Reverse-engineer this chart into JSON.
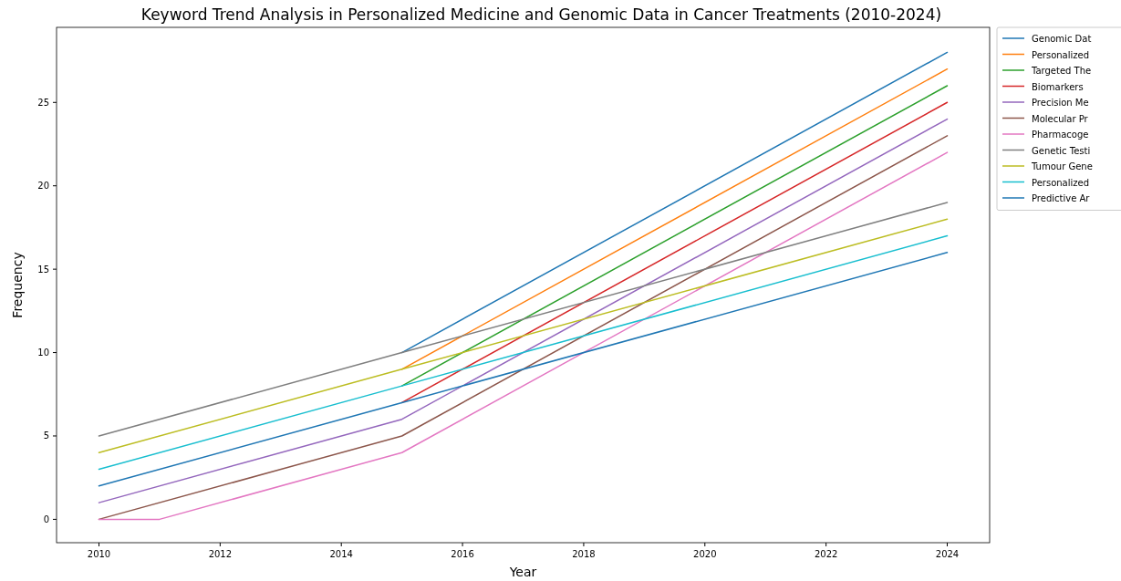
{
  "chart_data": {
    "type": "line",
    "title": "Keyword Trend Analysis in Personalized Medicine and Genomic Data in Cancer Treatments (2010-2024)",
    "xlabel": "Year",
    "ylabel": "Frequency",
    "xlim": [
      2009.3,
      2024.7
    ],
    "ylim": [
      -1.4,
      29.5
    ],
    "xticks": [
      2010,
      2012,
      2014,
      2016,
      2018,
      2020,
      2022,
      2024
    ],
    "yticks": [
      0,
      5,
      10,
      15,
      20,
      25
    ],
    "grid": false,
    "legend": "top right",
    "series": [
      {
        "name": "Genomic Dat",
        "color": "#1f77b4",
        "x": [
          2015,
          2024
        ],
        "values": [
          10,
          28
        ]
      },
      {
        "name": "Personalized",
        "color": "#ff7f0e",
        "x": [
          2015,
          2024
        ],
        "values": [
          9,
          27
        ]
      },
      {
        "name": "Targeted The",
        "color": "#2ca02c",
        "x": [
          2015,
          2024
        ],
        "values": [
          8,
          26
        ]
      },
      {
        "name": "Biomarkers",
        "color": "#d62728",
        "x": [
          2015,
          2024
        ],
        "values": [
          7,
          25
        ]
      },
      {
        "name": "Precision Me",
        "color": "#9467bd",
        "x": [
          2010,
          2015,
          2024
        ],
        "values": [
          1,
          6,
          24
        ]
      },
      {
        "name": "Molecular Pr",
        "color": "#8c564b",
        "x": [
          2010,
          2015,
          2024
        ],
        "values": [
          0,
          5,
          23
        ]
      },
      {
        "name": "Pharmacoge",
        "color": "#e377c2",
        "x": [
          2010,
          2011,
          2015,
          2024
        ],
        "values": [
          0,
          0,
          4,
          22
        ]
      },
      {
        "name": "Genetic Testi",
        "color": "#7f7f7f",
        "x": [
          2010,
          2015,
          2024
        ],
        "values": [
          5,
          10,
          19
        ]
      },
      {
        "name": "Tumour Gene",
        "color": "#bcbd22",
        "x": [
          2010,
          2015,
          2024
        ],
        "values": [
          4,
          9,
          18
        ]
      },
      {
        "name": "Personalized",
        "color": "#17becf",
        "x": [
          2010,
          2015,
          2024
        ],
        "values": [
          3,
          8,
          17
        ]
      },
      {
        "name": "Predictive Ar",
        "color": "#1f77b4",
        "x": [
          2010,
          2015,
          2024
        ],
        "values": [
          2,
          7,
          16
        ]
      }
    ]
  }
}
